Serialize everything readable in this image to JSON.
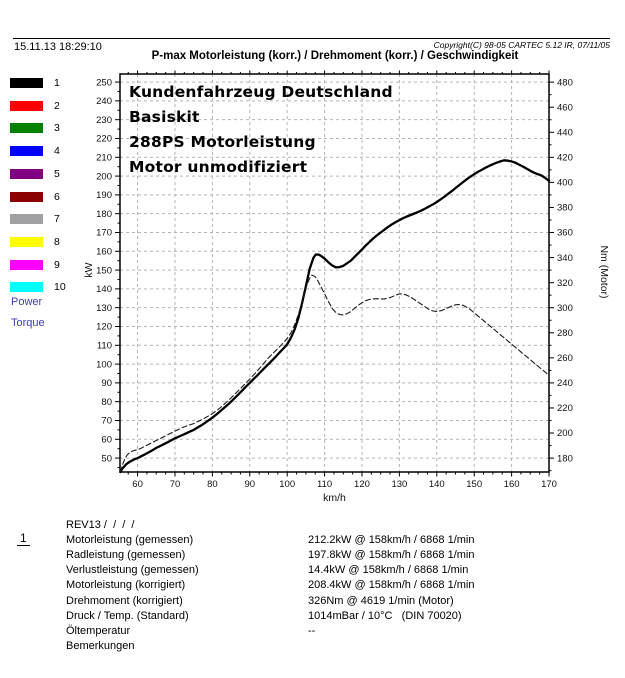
{
  "header": {
    "datetime": "15.11.13 18:29:10",
    "copyright": "Copyright(C) 98-05 CARTEC 5.12 IR, 07/11/05",
    "title": "P-max Motorleistung (korr.) / Drehmoment (korr.) / Geschwindigkeit"
  },
  "legend": {
    "label_color": "#3b3bb0",
    "power_label": "Power",
    "torque_label": "Torque",
    "items": [
      {
        "num": "1",
        "color": "#000000"
      },
      {
        "num": "2",
        "color": "#ff0000"
      },
      {
        "num": "3",
        "color": "#008000"
      },
      {
        "num": "4",
        "color": "#0000ff"
      },
      {
        "num": "5",
        "color": "#800080"
      },
      {
        "num": "6",
        "color": "#8b0000"
      },
      {
        "num": "7",
        "color": "#a0a0a4"
      },
      {
        "num": "8",
        "color": "#ffff00"
      },
      {
        "num": "9",
        "color": "#ff00ff"
      },
      {
        "num": "10",
        "color": "#00ffff"
      }
    ]
  },
  "annotation_lines": [
    "Kundenfahrzeug Deutschland",
    "Basiskit",
    "288PS Motorleistung",
    "Motor unmodifiziert"
  ],
  "chart_data": {
    "type": "line",
    "title": "P-max Motorleistung (korr.) / Drehmoment (korr.) / Geschwindigkeit",
    "xlabel": "km/h",
    "grid": true,
    "x_axis": {
      "min": 55.3,
      "max": 170,
      "tick_min": 60,
      "tick_max": 170,
      "tick_step": 10
    },
    "left_axis": {
      "label": "kW",
      "min": 42.6,
      "max": 254.3,
      "tick_min": 50,
      "tick_max": 250,
      "tick_step": 10
    },
    "right_axis": {
      "label": "Nm (Motor)",
      "min": 168.9,
      "max": 486.5,
      "tick_min": 180,
      "tick_max": 480,
      "tick_step": 20
    },
    "series": [
      {
        "name": "Motorleistung (korr.)",
        "axis": "left",
        "unit": "kW",
        "style": "solid",
        "color": "#000000",
        "points": [
          [
            55.4,
            42.6
          ],
          [
            56,
            44.6
          ],
          [
            57,
            46.8
          ],
          [
            58,
            48.2
          ],
          [
            59,
            49.2
          ],
          [
            60,
            50
          ],
          [
            61,
            51
          ],
          [
            62,
            52
          ],
          [
            63,
            53.1
          ],
          [
            64,
            54.2
          ],
          [
            65,
            55.4
          ],
          [
            66,
            56.4
          ],
          [
            67,
            57.4
          ],
          [
            68,
            58.4
          ],
          [
            69,
            59.4
          ],
          [
            70,
            60.5
          ],
          [
            71,
            61.4
          ],
          [
            72,
            62.3
          ],
          [
            73,
            63.2
          ],
          [
            74,
            64.1
          ],
          [
            75,
            65
          ],
          [
            76,
            66.2
          ],
          [
            77,
            67.4
          ],
          [
            78,
            68.7
          ],
          [
            79,
            70.1
          ],
          [
            80,
            71.5
          ],
          [
            81,
            73.1
          ],
          [
            82,
            74.8
          ],
          [
            83,
            76.5
          ],
          [
            84,
            78.2
          ],
          [
            85,
            80
          ],
          [
            86,
            82
          ],
          [
            87,
            84
          ],
          [
            88,
            86
          ],
          [
            89,
            88
          ],
          [
            90,
            90
          ],
          [
            91,
            92
          ],
          [
            92,
            94
          ],
          [
            93,
            96
          ],
          [
            94,
            98
          ],
          [
            95,
            100
          ],
          [
            96,
            102
          ],
          [
            97,
            104.1
          ],
          [
            98,
            106.2
          ],
          [
            99,
            108.3
          ],
          [
            100,
            110.5
          ],
          [
            101,
            114
          ],
          [
            102,
            118.5
          ],
          [
            103,
            124.5
          ],
          [
            104,
            132.5
          ],
          [
            105,
            141.5
          ],
          [
            106,
            150.5
          ],
          [
            107,
            156.5
          ],
          [
            107.6,
            158.2
          ],
          [
            108.4,
            158.3
          ],
          [
            109,
            157.6
          ],
          [
            110,
            156.1
          ],
          [
            111,
            154.2
          ],
          [
            112,
            152.5
          ],
          [
            113,
            151.5
          ],
          [
            114,
            151.6
          ],
          [
            115,
            152.3
          ],
          [
            116,
            153.6
          ],
          [
            117,
            155
          ],
          [
            118,
            157
          ],
          [
            119,
            159
          ],
          [
            120,
            161
          ],
          [
            121,
            163
          ],
          [
            122,
            165
          ],
          [
            123,
            166.8
          ],
          [
            124,
            168.5
          ],
          [
            125,
            170
          ],
          [
            126,
            171.5
          ],
          [
            127,
            173
          ],
          [
            128,
            174.3
          ],
          [
            129,
            175.5
          ],
          [
            130,
            176.6
          ],
          [
            131,
            177.6
          ],
          [
            132,
            178.5
          ],
          [
            133,
            179.3
          ],
          [
            134,
            180.1
          ],
          [
            135,
            180.9
          ],
          [
            136,
            181.8
          ],
          [
            137,
            182.8
          ],
          [
            138,
            183.9
          ],
          [
            139,
            185
          ],
          [
            140,
            186.2
          ],
          [
            141,
            187.6
          ],
          [
            142,
            189
          ],
          [
            143,
            190.5
          ],
          [
            144,
            192
          ],
          [
            145,
            193.6
          ],
          [
            146,
            195.2
          ],
          [
            147,
            196.8
          ],
          [
            148,
            198.3
          ],
          [
            149,
            199.7
          ],
          [
            150,
            201
          ],
          [
            151,
            202.2
          ],
          [
            152,
            203.3
          ],
          [
            153,
            204.4
          ],
          [
            154,
            205.4
          ],
          [
            155,
            206.3
          ],
          [
            156,
            207.1
          ],
          [
            157,
            207.8
          ],
          [
            158,
            208.4
          ],
          [
            159,
            208.2
          ],
          [
            160,
            207.8
          ],
          [
            161,
            207.1
          ],
          [
            162,
            206.1
          ],
          [
            163,
            205.1
          ],
          [
            164,
            204
          ],
          [
            165,
            202.8
          ],
          [
            166,
            201.8
          ],
          [
            167,
            201
          ],
          [
            168,
            200.3
          ],
          [
            169,
            199
          ],
          [
            170,
            197.5
          ]
        ]
      },
      {
        "name": "Drehmoment (korr.)",
        "axis": "right",
        "unit": "Nm",
        "style": "dashed",
        "color": "#1a1a1a",
        "points": [
          [
            55.4,
            169
          ],
          [
            56,
            175
          ],
          [
            56.6,
            179.5
          ],
          [
            57.2,
            182.5
          ],
          [
            58,
            184.8
          ],
          [
            59,
            186
          ],
          [
            60,
            186.6
          ],
          [
            61,
            188
          ],
          [
            62,
            189.5
          ],
          [
            63,
            191
          ],
          [
            64,
            192.5
          ],
          [
            65,
            194
          ],
          [
            66,
            195.5
          ],
          [
            67,
            197
          ],
          [
            68,
            198.5
          ],
          [
            69,
            200
          ],
          [
            70,
            201.5
          ],
          [
            71,
            203
          ],
          [
            72,
            204.4
          ],
          [
            73,
            205.5
          ],
          [
            74,
            206.5
          ],
          [
            75,
            207.5
          ],
          [
            76,
            209
          ],
          [
            77,
            210.5
          ],
          [
            78,
            212
          ],
          [
            79,
            213.7
          ],
          [
            80,
            215.5
          ],
          [
            81,
            217.6
          ],
          [
            82,
            220
          ],
          [
            83,
            222.5
          ],
          [
            84,
            225.2
          ],
          [
            85,
            228
          ],
          [
            86,
            231
          ],
          [
            87,
            234
          ],
          [
            88,
            237
          ],
          [
            89,
            240
          ],
          [
            90,
            243
          ],
          [
            91,
            246.2
          ],
          [
            92,
            249.5
          ],
          [
            93,
            253
          ],
          [
            94,
            256.5
          ],
          [
            95,
            260
          ],
          [
            96,
            263
          ],
          [
            97,
            266
          ],
          [
            98,
            269
          ],
          [
            99,
            272
          ],
          [
            100,
            275.5
          ],
          [
            101,
            280
          ],
          [
            102,
            286.5
          ],
          [
            103,
            294.5
          ],
          [
            104,
            305
          ],
          [
            105,
            316
          ],
          [
            106,
            323.5
          ],
          [
            106.6,
            326
          ],
          [
            107.4,
            325
          ],
          [
            108,
            322.5
          ],
          [
            109,
            317
          ],
          [
            110,
            311
          ],
          [
            111,
            305
          ],
          [
            112,
            299.5
          ],
          [
            113,
            296.2
          ],
          [
            114,
            294.6
          ],
          [
            115,
            294.2
          ],
          [
            116,
            295.2
          ],
          [
            117,
            297
          ],
          [
            118,
            299.5
          ],
          [
            119,
            302
          ],
          [
            120,
            304
          ],
          [
            121,
            305.6
          ],
          [
            122,
            306.6
          ],
          [
            123,
            307
          ],
          [
            124,
            307.2
          ],
          [
            125,
            307
          ],
          [
            126,
            307
          ],
          [
            127,
            307.6
          ],
          [
            128,
            308.6
          ],
          [
            129,
            310
          ],
          [
            130,
            311
          ],
          [
            131,
            311
          ],
          [
            132,
            310
          ],
          [
            133,
            308.5
          ],
          [
            134,
            306.5
          ],
          [
            135,
            304.5
          ],
          [
            136,
            302.5
          ],
          [
            137,
            300.4
          ],
          [
            138,
            298.5
          ],
          [
            139,
            297.4
          ],
          [
            140,
            297
          ],
          [
            141,
            297.5
          ],
          [
            142,
            298.6
          ],
          [
            143,
            300
          ],
          [
            144,
            301.4
          ],
          [
            145,
            302.3
          ],
          [
            146,
            302.5
          ],
          [
            147,
            301.9
          ],
          [
            148,
            300.4
          ],
          [
            149,
            298.4
          ],
          [
            150,
            296
          ],
          [
            151,
            293.5
          ],
          [
            152,
            291
          ],
          [
            153,
            288.4
          ],
          [
            154,
            286
          ],
          [
            155,
            283.5
          ],
          [
            156,
            281
          ],
          [
            157,
            278.4
          ],
          [
            158,
            276
          ],
          [
            159,
            273.4
          ],
          [
            160,
            271
          ],
          [
            161,
            268.5
          ],
          [
            162,
            266
          ],
          [
            163,
            263.4
          ],
          [
            164,
            261
          ],
          [
            165,
            258.5
          ],
          [
            166,
            256
          ],
          [
            167,
            253.5
          ],
          [
            168,
            251
          ],
          [
            169,
            248.5
          ],
          [
            170,
            246
          ]
        ]
      }
    ],
    "annotations": [
      "Kundenfahrzeug Deutschland",
      "Basiskit",
      "288PS Motorleistung",
      "Motor unmodifiziert"
    ]
  },
  "results": {
    "index_label": "1",
    "rows": [
      {
        "label": "REV13 /  /  /  /",
        "value": ""
      },
      {
        "label": "Motorleistung (gemessen)",
        "value": "212.2kW @ 158km/h / 6868 1/min"
      },
      {
        "label": "Radleistung (gemessen)",
        "value": "197.8kW @ 158km/h / 6868 1/min"
      },
      {
        "label": "Verlustleistung (gemessen)",
        "value": "14.4kW @ 158km/h / 6868 1/min"
      },
      {
        "label": "Motorleistung (korrigiert)",
        "value": "208.4kW @ 158km/h / 6868 1/min"
      },
      {
        "label": "Drehmoment (korrigiert)",
        "value": "326Nm @ 4619 1/min (Motor)"
      },
      {
        "label": "Druck / Temp. (Standard)",
        "value": "1014mBar / 10°C   (DIN 70020)"
      },
      {
        "label": "Öltemperatur",
        "value": "--"
      },
      {
        "label": "Bemerkungen",
        "value": ""
      }
    ]
  }
}
